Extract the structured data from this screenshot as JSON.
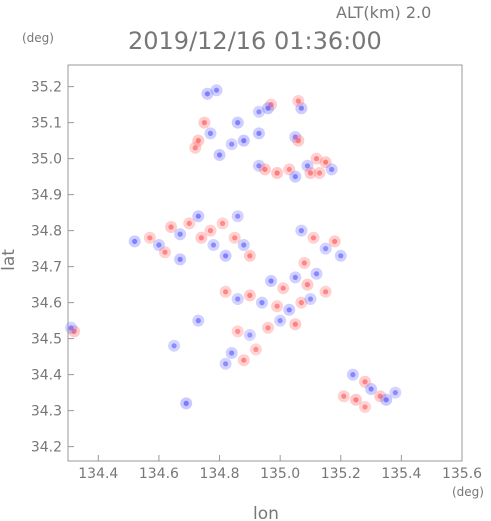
{
  "header": {
    "alt_label": "ALT(km) 2.0",
    "datetime": "2019/12/16 01:36:00",
    "y_unit": "(deg)",
    "x_unit": "(deg)"
  },
  "colors": {
    "axis": "#999999",
    "text": "#777777",
    "positive": "#ff6666",
    "negative": "#6666ff"
  },
  "chart_data": {
    "type": "heatmap",
    "title": "2019/12/16 01:36:00",
    "subtitle": "ALT(km) 2.0",
    "xlabel": "lon",
    "ylabel": "lat",
    "xlim": [
      134.3,
      135.6
    ],
    "ylim": [
      34.16,
      35.26
    ],
    "grid": false,
    "x_ticks": [
      134.4,
      134.6,
      134.8,
      135.0,
      135.2,
      135.4,
      135.6
    ],
    "x_tick_labels": [
      "134.4",
      "134.6",
      "134.8",
      "135.0",
      "135.2",
      "135.4",
      "135.6"
    ],
    "y_ticks": [
      34.2,
      34.3,
      34.4,
      34.5,
      34.6,
      34.7,
      34.8,
      34.9,
      35.0,
      35.1,
      35.2
    ],
    "y_tick_labels": [
      "34.2",
      "34.3",
      "34.4",
      "34.5",
      "34.6",
      "34.7",
      "34.8",
      "34.9",
      "35.0",
      "35.1",
      "35.2"
    ],
    "clusters": [
      {
        "lon": 134.76,
        "lat": 35.18,
        "value": -0.6
      },
      {
        "lon": 134.79,
        "lat": 35.19,
        "value": -0.5
      },
      {
        "lon": 134.93,
        "lat": 35.13,
        "value": -0.4
      },
      {
        "lon": 134.97,
        "lat": 35.15,
        "value": 0.5
      },
      {
        "lon": 134.96,
        "lat": 35.14,
        "value": -0.7
      },
      {
        "lon": 135.07,
        "lat": 35.14,
        "value": -0.6
      },
      {
        "lon": 135.06,
        "lat": 35.16,
        "value": 0.5
      },
      {
        "lon": 134.75,
        "lat": 35.1,
        "value": 0.6
      },
      {
        "lon": 134.77,
        "lat": 35.07,
        "value": -0.5
      },
      {
        "lon": 134.86,
        "lat": 35.1,
        "value": -0.6
      },
      {
        "lon": 134.73,
        "lat": 35.05,
        "value": 0.7
      },
      {
        "lon": 134.84,
        "lat": 35.04,
        "value": -0.4
      },
      {
        "lon": 134.88,
        "lat": 35.05,
        "value": -0.7
      },
      {
        "lon": 134.93,
        "lat": 35.07,
        "value": -0.6
      },
      {
        "lon": 135.05,
        "lat": 35.06,
        "value": -0.5
      },
      {
        "lon": 135.06,
        "lat": 35.05,
        "value": 0.6
      },
      {
        "lon": 134.72,
        "lat": 35.03,
        "value": 0.5
      },
      {
        "lon": 134.8,
        "lat": 35.01,
        "value": -0.6
      },
      {
        "lon": 134.93,
        "lat": 34.98,
        "value": -0.5
      },
      {
        "lon": 134.95,
        "lat": 34.97,
        "value": 0.6
      },
      {
        "lon": 134.99,
        "lat": 34.96,
        "value": 0.7
      },
      {
        "lon": 135.03,
        "lat": 34.97,
        "value": 0.5
      },
      {
        "lon": 135.05,
        "lat": 34.95,
        "value": -0.6
      },
      {
        "lon": 135.09,
        "lat": 34.98,
        "value": -0.5
      },
      {
        "lon": 135.1,
        "lat": 34.96,
        "value": 0.6
      },
      {
        "lon": 135.12,
        "lat": 35.0,
        "value": 0.5
      },
      {
        "lon": 135.15,
        "lat": 34.99,
        "value": 0.7
      },
      {
        "lon": 135.17,
        "lat": 34.97,
        "value": -0.5
      },
      {
        "lon": 135.13,
        "lat": 34.96,
        "value": 0.5
      },
      {
        "lon": 134.52,
        "lat": 34.77,
        "value": -0.6
      },
      {
        "lon": 134.57,
        "lat": 34.78,
        "value": 0.5
      },
      {
        "lon": 134.6,
        "lat": 34.76,
        "value": -0.5
      },
      {
        "lon": 134.64,
        "lat": 34.81,
        "value": 0.6
      },
      {
        "lon": 134.67,
        "lat": 34.79,
        "value": -0.5
      },
      {
        "lon": 134.7,
        "lat": 34.82,
        "value": 0.5
      },
      {
        "lon": 134.73,
        "lat": 34.84,
        "value": -0.6
      },
      {
        "lon": 134.74,
        "lat": 34.78,
        "value": 0.6
      },
      {
        "lon": 134.77,
        "lat": 34.8,
        "value": 0.5
      },
      {
        "lon": 134.78,
        "lat": 34.76,
        "value": -0.4
      },
      {
        "lon": 134.81,
        "lat": 34.82,
        "value": 0.4
      },
      {
        "lon": 134.82,
        "lat": 34.73,
        "value": -0.6
      },
      {
        "lon": 134.85,
        "lat": 34.78,
        "value": 0.5
      },
      {
        "lon": 134.88,
        "lat": 34.76,
        "value": -0.5
      },
      {
        "lon": 134.9,
        "lat": 34.73,
        "value": 0.6
      },
      {
        "lon": 134.86,
        "lat": 34.84,
        "value": -0.4
      },
      {
        "lon": 134.67,
        "lat": 34.72,
        "value": -0.6
      },
      {
        "lon": 134.62,
        "lat": 34.74,
        "value": 0.5
      },
      {
        "lon": 135.07,
        "lat": 34.8,
        "value": -0.5
      },
      {
        "lon": 135.11,
        "lat": 34.78,
        "value": 0.5
      },
      {
        "lon": 135.15,
        "lat": 34.75,
        "value": -0.4
      },
      {
        "lon": 135.18,
        "lat": 34.77,
        "value": 0.6
      },
      {
        "lon": 135.2,
        "lat": 34.73,
        "value": -0.5
      },
      {
        "lon": 135.08,
        "lat": 34.71,
        "value": 0.5
      },
      {
        "lon": 134.97,
        "lat": 34.66,
        "value": -0.6
      },
      {
        "lon": 135.01,
        "lat": 34.64,
        "value": 0.5
      },
      {
        "lon": 135.05,
        "lat": 34.67,
        "value": -0.5
      },
      {
        "lon": 135.09,
        "lat": 34.65,
        "value": 0.6
      },
      {
        "lon": 135.12,
        "lat": 34.68,
        "value": -0.5
      },
      {
        "lon": 134.82,
        "lat": 34.63,
        "value": 0.5
      },
      {
        "lon": 134.86,
        "lat": 34.61,
        "value": -0.4
      },
      {
        "lon": 134.9,
        "lat": 34.62,
        "value": 0.6
      },
      {
        "lon": 134.94,
        "lat": 34.6,
        "value": -0.5
      },
      {
        "lon": 134.99,
        "lat": 34.59,
        "value": 0.5
      },
      {
        "lon": 135.03,
        "lat": 34.58,
        "value": -0.6
      },
      {
        "lon": 135.07,
        "lat": 34.6,
        "value": 0.5
      },
      {
        "lon": 135.1,
        "lat": 34.61,
        "value": -0.4
      },
      {
        "lon": 135.15,
        "lat": 34.63,
        "value": 0.5
      },
      {
        "lon": 134.73,
        "lat": 34.55,
        "value": -0.5
      },
      {
        "lon": 134.86,
        "lat": 34.52,
        "value": 0.4
      },
      {
        "lon": 134.9,
        "lat": 34.51,
        "value": -0.3
      },
      {
        "lon": 134.96,
        "lat": 34.53,
        "value": 0.5
      },
      {
        "lon": 135.0,
        "lat": 34.55,
        "value": -0.4
      },
      {
        "lon": 135.05,
        "lat": 34.54,
        "value": 0.6
      },
      {
        "lon": 134.84,
        "lat": 34.46,
        "value": -0.5
      },
      {
        "lon": 134.88,
        "lat": 34.44,
        "value": 0.5
      },
      {
        "lon": 134.92,
        "lat": 34.47,
        "value": 0.4
      },
      {
        "lon": 134.82,
        "lat": 34.43,
        "value": -0.4
      },
      {
        "lon": 134.32,
        "lat": 34.52,
        "value": 0.7
      },
      {
        "lon": 134.31,
        "lat": 34.53,
        "value": -0.4
      },
      {
        "lon": 134.65,
        "lat": 34.48,
        "value": -0.4
      },
      {
        "lon": 134.69,
        "lat": 34.32,
        "value": -0.7
      },
      {
        "lon": 135.24,
        "lat": 34.4,
        "value": -0.5
      },
      {
        "lon": 135.28,
        "lat": 34.38,
        "value": 0.6
      },
      {
        "lon": 135.21,
        "lat": 34.34,
        "value": 0.5
      },
      {
        "lon": 135.25,
        "lat": 34.33,
        "value": 0.7
      },
      {
        "lon": 135.3,
        "lat": 34.36,
        "value": -0.6
      },
      {
        "lon": 135.33,
        "lat": 34.34,
        "value": 0.6
      },
      {
        "lon": 135.35,
        "lat": 34.33,
        "value": -0.7
      },
      {
        "lon": 135.28,
        "lat": 34.31,
        "value": 0.4
      },
      {
        "lon": 135.38,
        "lat": 34.35,
        "value": -0.4
      }
    ]
  }
}
